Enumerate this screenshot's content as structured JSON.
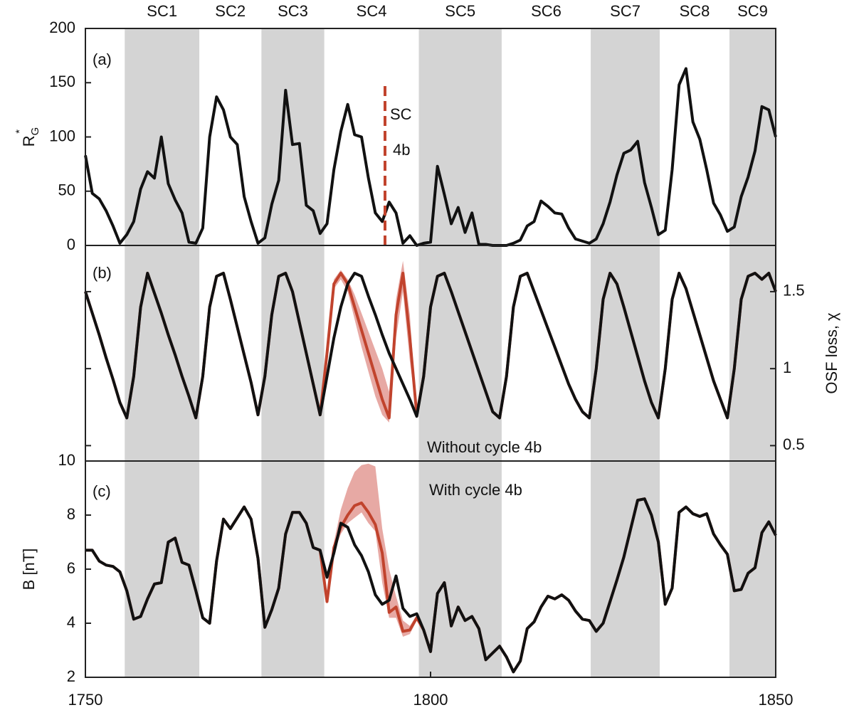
{
  "chart_data": {
    "type": "multi-panel",
    "xlim": [
      1750,
      1850
    ],
    "xticks": [
      1750,
      1800,
      1850
    ],
    "x": [
      1750,
      1751,
      1752,
      1753,
      1754,
      1755,
      1756,
      1757,
      1758,
      1759,
      1760,
      1761,
      1762,
      1763,
      1764,
      1765,
      1766,
      1767,
      1768,
      1769,
      1770,
      1771,
      1772,
      1773,
      1774,
      1775,
      1776,
      1777,
      1778,
      1779,
      1780,
      1781,
      1782,
      1783,
      1784,
      1785,
      1786,
      1787,
      1788,
      1789,
      1790,
      1791,
      1792,
      1793,
      1794,
      1795,
      1796,
      1797,
      1798,
      1799,
      1800,
      1801,
      1802,
      1803,
      1804,
      1805,
      1806,
      1807,
      1808,
      1809,
      1810,
      1811,
      1812,
      1813,
      1814,
      1815,
      1816,
      1817,
      1818,
      1819,
      1820,
      1821,
      1822,
      1823,
      1824,
      1825,
      1826,
      1827,
      1828,
      1829,
      1830,
      1831,
      1832,
      1833,
      1834,
      1835,
      1836,
      1837,
      1838,
      1839,
      1840,
      1841,
      1842,
      1843,
      1844,
      1845,
      1846,
      1847,
      1848,
      1849,
      1850
    ],
    "cycles": [
      {
        "name": "SC1",
        "start": 1755.7,
        "end": 1766.5,
        "shaded": true
      },
      {
        "name": "SC2",
        "start": 1766.5,
        "end": 1775.5,
        "shaded": false
      },
      {
        "name": "SC3",
        "start": 1775.5,
        "end": 1784.6,
        "shaded": true
      },
      {
        "name": "SC4",
        "start": 1784.6,
        "end": 1798.3,
        "shaded": false
      },
      {
        "name": "SC5",
        "start": 1798.3,
        "end": 1810.3,
        "shaded": true
      },
      {
        "name": "SC6",
        "start": 1810.3,
        "end": 1823.2,
        "shaded": false
      },
      {
        "name": "SC7",
        "start": 1823.2,
        "end": 1833.2,
        "shaded": true
      },
      {
        "name": "SC8",
        "start": 1833.2,
        "end": 1843.3,
        "shaded": false
      },
      {
        "name": "SC9",
        "start": 1843.3,
        "end": 1850,
        "shaded": true
      }
    ],
    "panels": [
      {
        "type": "line",
        "panel_label": "(a)",
        "y_label": {
          "text": "R",
          "sub": "G",
          "sup": "*"
        },
        "ylim": [
          0,
          200
        ],
        "yticks": [
          0,
          50,
          100,
          150,
          200
        ],
        "y_axis_side": "left",
        "series": [
          {
            "color": "#111111",
            "values": [
              83,
              48,
              43,
              32,
              18,
              2,
              10,
              22,
              52,
              68,
              62,
              100,
              57,
              42,
              30,
              3,
              2,
              16,
              100,
              137,
              125,
              100,
              93,
              45,
              22,
              2,
              7,
              38,
              60,
              143,
              93,
              94,
              37,
              32,
              11,
              20,
              70,
              105,
              130,
              102,
              100,
              62,
              30,
              22,
              40,
              30,
              2,
              9,
              0,
              2,
              3,
              73,
              47,
              20,
              35,
              12,
              30,
              1,
              1,
              0,
              0,
              0,
              2,
              5,
              18,
              22,
              41,
              36,
              30,
              29,
              16,
              6,
              4,
              2,
              6,
              20,
              40,
              65,
              85,
              88,
              96,
              58,
              35,
              10,
              14,
              70,
              148,
              163,
              114,
              98,
              70,
              39,
              28,
              13,
              17,
              45,
              63,
              87,
              128,
              125,
              100
            ]
          }
        ],
        "marker": {
          "x": 1793.4,
          "y": [
            0,
            150
          ],
          "color": "#c1432d"
        },
        "annotations": [
          {
            "text": "SC",
            "color": "#c1432d"
          },
          {
            "text": "4b",
            "color": "#c1432d"
          }
        ]
      },
      {
        "type": "line",
        "panel_label": "(b)",
        "y_label": {
          "text": "OSF loss, χ"
        },
        "ylim": [
          0.4,
          1.8
        ],
        "yticks": [
          0.5,
          1,
          1.5
        ],
        "y_axis_side": "right",
        "series": [
          {
            "name": "With cycle 4b",
            "color": "#c1432d",
            "values": [
              1.5,
              1.36,
              1.22,
              1.07,
              0.93,
              0.78,
              0.68,
              0.95,
              1.4,
              1.62,
              1.49,
              1.36,
              1.22,
              1.09,
              0.95,
              0.82,
              0.68,
              0.95,
              1.4,
              1.6,
              1.62,
              1.45,
              1.27,
              1.09,
              0.91,
              0.7,
              0.95,
              1.35,
              1.6,
              1.62,
              1.5,
              1.3,
              1.1,
              0.9,
              0.7,
              1.1,
              1.55,
              1.62,
              1.55,
              1.4,
              1.25,
              1.1,
              0.95,
              0.8,
              0.68,
              1.35,
              1.62,
              1.2,
              0.7,
              0.95,
              1.4,
              1.6,
              1.62,
              1.5,
              1.37,
              1.24,
              1.11,
              0.98,
              0.85,
              0.72,
              0.68,
              0.95,
              1.4,
              1.6,
              1.62,
              1.5,
              1.38,
              1.26,
              1.14,
              1.02,
              0.9,
              0.8,
              0.72,
              0.68,
              1.0,
              1.45,
              1.62,
              1.55,
              1.4,
              1.24,
              1.08,
              0.92,
              0.78,
              0.68,
              1.0,
              1.45,
              1.62,
              1.52,
              1.37,
              1.22,
              1.07,
              0.92,
              0.8,
              0.68,
              1.0,
              1.45,
              1.6,
              1.62,
              1.58,
              1.62,
              1.5
            ],
            "band": {
              "color": "#e39a94",
              "x": [
                1784,
                1785,
                1786,
                1787,
                1788,
                1789,
                1790,
                1791,
                1792,
                1793,
                1794,
                1795,
                1796,
                1797,
                1798
              ],
              "lower": [
                0.7,
                1.08,
                1.52,
                1.58,
                1.5,
                1.32,
                1.14,
                0.98,
                0.82,
                0.7,
                0.65,
                1.2,
                1.5,
                1.05,
                0.7
              ],
              "upper": [
                0.7,
                1.12,
                1.58,
                1.64,
                1.58,
                1.48,
                1.36,
                1.24,
                1.12,
                1.0,
                0.85,
                1.45,
                1.7,
                1.35,
                0.7
              ]
            }
          },
          {
            "name": "Without cycle 4b",
            "color": "#111111",
            "values": [
              1.5,
              1.36,
              1.22,
              1.07,
              0.93,
              0.78,
              0.68,
              0.95,
              1.4,
              1.62,
              1.49,
              1.36,
              1.22,
              1.09,
              0.95,
              0.82,
              0.68,
              0.95,
              1.4,
              1.6,
              1.62,
              1.45,
              1.27,
              1.09,
              0.91,
              0.7,
              0.95,
              1.35,
              1.6,
              1.62,
              1.5,
              1.3,
              1.1,
              0.9,
              0.7,
              0.95,
              1.2,
              1.4,
              1.55,
              1.62,
              1.6,
              1.47,
              1.35,
              1.22,
              1.1,
              1.0,
              0.9,
              0.8,
              0.69,
              0.95,
              1.4,
              1.6,
              1.62,
              1.5,
              1.37,
              1.24,
              1.11,
              0.98,
              0.85,
              0.72,
              0.68,
              0.95,
              1.4,
              1.6,
              1.62,
              1.5,
              1.38,
              1.26,
              1.14,
              1.02,
              0.9,
              0.8,
              0.72,
              0.68,
              1.0,
              1.45,
              1.62,
              1.55,
              1.4,
              1.24,
              1.08,
              0.92,
              0.78,
              0.68,
              1.0,
              1.45,
              1.62,
              1.52,
              1.37,
              1.22,
              1.07,
              0.92,
              0.8,
              0.68,
              1.0,
              1.45,
              1.6,
              1.62,
              1.58,
              1.62,
              1.5
            ]
          }
        ]
      },
      {
        "type": "line",
        "panel_label": "(c)",
        "y_label": {
          "text": "B [nT]"
        },
        "ylim": [
          2,
          10
        ],
        "yticks": [
          2,
          4,
          6,
          8,
          10
        ],
        "y_axis_side": "left",
        "series": [
          {
            "color": "#c1432d",
            "values": [
              6.7,
              6.7,
              6.3,
              6.15,
              6.1,
              5.9,
              5.2,
              4.15,
              4.25,
              4.9,
              5.45,
              5.5,
              7.0,
              7.15,
              6.25,
              6.15,
              5.2,
              4.2,
              4.0,
              6.3,
              7.85,
              7.5,
              7.9,
              8.3,
              7.85,
              6.4,
              3.85,
              4.5,
              5.3,
              7.3,
              8.1,
              8.1,
              7.7,
              6.8,
              6.7,
              4.8,
              6.8,
              7.55,
              8.0,
              8.35,
              8.45,
              8.1,
              7.65,
              6.6,
              4.4,
              4.6,
              3.7,
              3.75,
              4.2,
              3.75,
              2.95,
              5.1,
              5.5,
              3.9,
              4.6,
              4.1,
              4.25,
              3.8,
              2.65,
              2.9,
              3.15,
              2.75,
              2.2,
              2.6,
              3.8,
              4.05,
              4.6,
              5.0,
              4.9,
              5.05,
              4.85,
              4.45,
              4.15,
              4.1,
              3.7,
              4.0,
              4.8,
              5.6,
              6.45,
              7.5,
              8.55,
              8.6,
              8.0,
              7.0,
              4.7,
              5.3,
              8.1,
              8.3,
              8.05,
              7.95,
              8.05,
              7.3,
              6.9,
              6.55,
              5.2,
              5.25,
              5.85,
              6.05,
              7.35,
              7.75,
              7.25
            ],
            "band": {
              "color": "#e39a94",
              "x": [
                1785,
                1786,
                1787,
                1788,
                1789,
                1790,
                1791,
                1792,
                1793,
                1794,
                1795,
                1796,
                1797,
                1798
              ],
              "lower": [
                4.7,
                6.6,
                7.3,
                7.7,
                7.9,
                8.1,
                7.7,
                7.4,
                5.5,
                4.2,
                4.2,
                3.5,
                3.6,
                4.1
              ],
              "upper": [
                4.9,
                7.0,
                8.2,
                9.0,
                9.6,
                9.85,
                9.9,
                9.8,
                7.5,
                6.0,
                5.0,
                4.1,
                3.9,
                4.3
              ]
            }
          },
          {
            "color": "#111111",
            "values": [
              6.7,
              6.7,
              6.3,
              6.15,
              6.1,
              5.9,
              5.2,
              4.15,
              4.25,
              4.9,
              5.45,
              5.5,
              7.0,
              7.15,
              6.25,
              6.15,
              5.2,
              4.2,
              4.0,
              6.3,
              7.85,
              7.5,
              7.9,
              8.3,
              7.85,
              6.4,
              3.85,
              4.5,
              5.3,
              7.3,
              8.1,
              8.1,
              7.7,
              6.8,
              6.7,
              5.7,
              6.6,
              7.7,
              7.55,
              6.9,
              6.5,
              5.9,
              5.05,
              4.7,
              4.85,
              5.75,
              4.55,
              4.25,
              4.35,
              3.75,
              2.95,
              5.1,
              5.5,
              3.9,
              4.6,
              4.1,
              4.25,
              3.8,
              2.65,
              2.9,
              3.15,
              2.75,
              2.2,
              2.6,
              3.8,
              4.05,
              4.6,
              5.0,
              4.9,
              5.05,
              4.85,
              4.45,
              4.15,
              4.1,
              3.7,
              4.0,
              4.8,
              5.6,
              6.45,
              7.5,
              8.55,
              8.6,
              8.0,
              7.0,
              4.7,
              5.3,
              8.1,
              8.3,
              8.05,
              7.95,
              8.05,
              7.3,
              6.9,
              6.55,
              5.2,
              5.25,
              5.85,
              6.05,
              7.35,
              7.75,
              7.25
            ]
          }
        ]
      }
    ]
  }
}
